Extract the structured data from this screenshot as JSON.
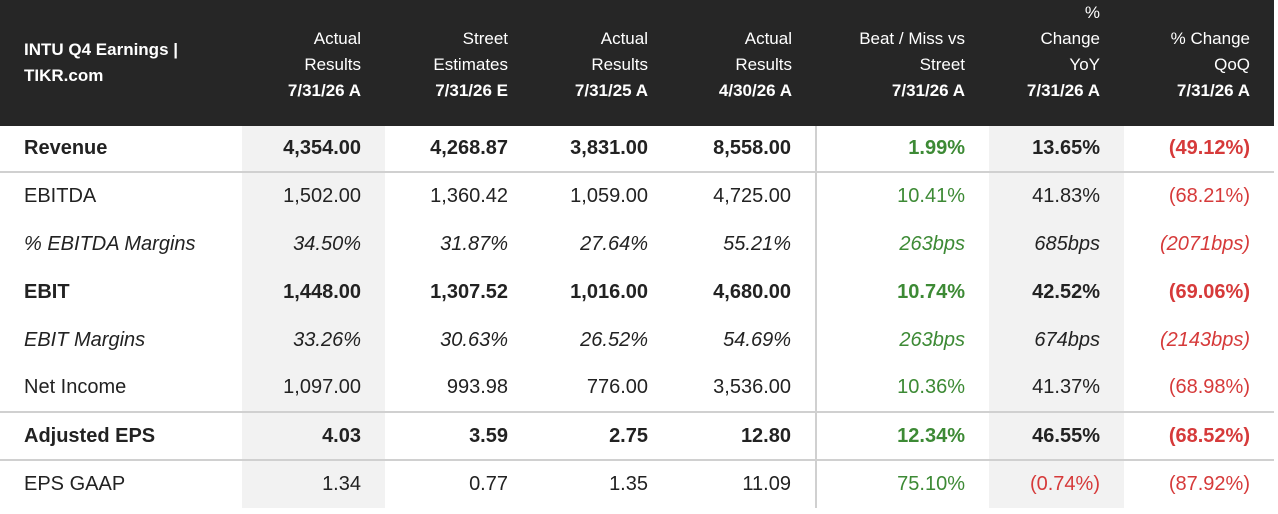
{
  "chart_data": {
    "type": "table",
    "title": "INTU Q4 Earnings | TIKR.com",
    "colors": {
      "header_bg": "#262626",
      "positive": "#3d8a35",
      "negative": "#d63a3a",
      "shade": "#f2f2f2"
    },
    "columns": [
      {
        "lines": [
          "Actual",
          "Results"
        ],
        "date": "7/31/26 A"
      },
      {
        "lines": [
          "Street",
          "Estimates"
        ],
        "date": "7/31/26 E"
      },
      {
        "lines": [
          "Actual",
          "Results"
        ],
        "date": "7/31/25 A"
      },
      {
        "lines": [
          "Actual",
          "Results"
        ],
        "date": "4/30/26 A"
      },
      {
        "lines": [
          "Beat / Miss vs",
          "Street"
        ],
        "date": "7/31/26 A"
      },
      {
        "lines": [
          "%",
          "Change",
          "YoY"
        ],
        "date": "7/31/26 A"
      },
      {
        "lines": [
          "% Change",
          "QoQ"
        ],
        "date": "7/31/26 A"
      }
    ],
    "rows": [
      {
        "label": "Revenue",
        "values": [
          "4,354.00",
          "4,268.87",
          "3,831.00",
          "8,558.00",
          "1.99%",
          "13.65%",
          "(49.12%)"
        ]
      },
      {
        "label": "EBITDA",
        "values": [
          "1,502.00",
          "1,360.42",
          "1,059.00",
          "4,725.00",
          "10.41%",
          "41.83%",
          "(68.21%)"
        ]
      },
      {
        "label": "% EBITDA Margins",
        "values": [
          "34.50%",
          "31.87%",
          "27.64%",
          "55.21%",
          "263bps",
          "685bps",
          "(2071bps)"
        ]
      },
      {
        "label": "EBIT",
        "values": [
          "1,448.00",
          "1,307.52",
          "1,016.00",
          "4,680.00",
          "10.74%",
          "42.52%",
          "(69.06%)"
        ]
      },
      {
        "label": "EBIT Margins",
        "values": [
          "33.26%",
          "30.63%",
          "26.52%",
          "54.69%",
          "263bps",
          "674bps",
          "(2143bps)"
        ]
      },
      {
        "label": "Net Income",
        "values": [
          "1,097.00",
          "993.98",
          "776.00",
          "3,536.00",
          "10.36%",
          "41.37%",
          "(68.98%)"
        ]
      },
      {
        "label": "Adjusted EPS",
        "values": [
          "4.03",
          "3.59",
          "2.75",
          "12.80",
          "12.34%",
          "46.55%",
          "(68.52%)"
        ]
      },
      {
        "label": "EPS GAAP",
        "values": [
          "1.34",
          "0.77",
          "1.35",
          "11.09",
          "75.10%",
          "(0.74%)",
          "(87.92%)"
        ]
      }
    ]
  },
  "header": {
    "title_line1": "INTU Q4 Earnings |",
    "title_line2": "TIKR.com"
  }
}
